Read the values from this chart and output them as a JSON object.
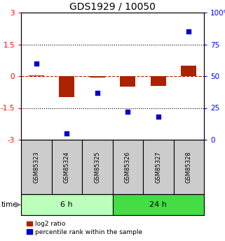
{
  "title": "GDS1929 / 10050",
  "samples": [
    "GSM85323",
    "GSM85324",
    "GSM85325",
    "GSM85326",
    "GSM85327",
    "GSM85328"
  ],
  "log2_ratio": [
    0.02,
    -1.0,
    -0.05,
    -0.5,
    -0.45,
    0.5
  ],
  "percentile_rank": [
    60,
    5,
    37,
    22,
    18,
    85
  ],
  "groups": [
    {
      "label": "6 h",
      "indices": [
        0,
        1,
        2
      ],
      "color": "#bbffbb"
    },
    {
      "label": "24 h",
      "indices": [
        3,
        4,
        5
      ],
      "color": "#44dd44"
    }
  ],
  "bar_color": "#aa2200",
  "dot_color": "#0000cc",
  "ylim_left": [
    -3,
    3
  ],
  "ylim_right": [
    0,
    100
  ],
  "yticks_left": [
    -3,
    -1.5,
    0,
    1.5,
    3
  ],
  "yticks_right": [
    0,
    25,
    50,
    75,
    100
  ],
  "dotted_lines": [
    -1.5,
    1.5
  ],
  "bg_color": "#ffffff",
  "plot_bg": "#ffffff",
  "title_fontsize": 10,
  "bar_width": 0.5,
  "label_bg": "#cccccc",
  "label_border": "#888888"
}
